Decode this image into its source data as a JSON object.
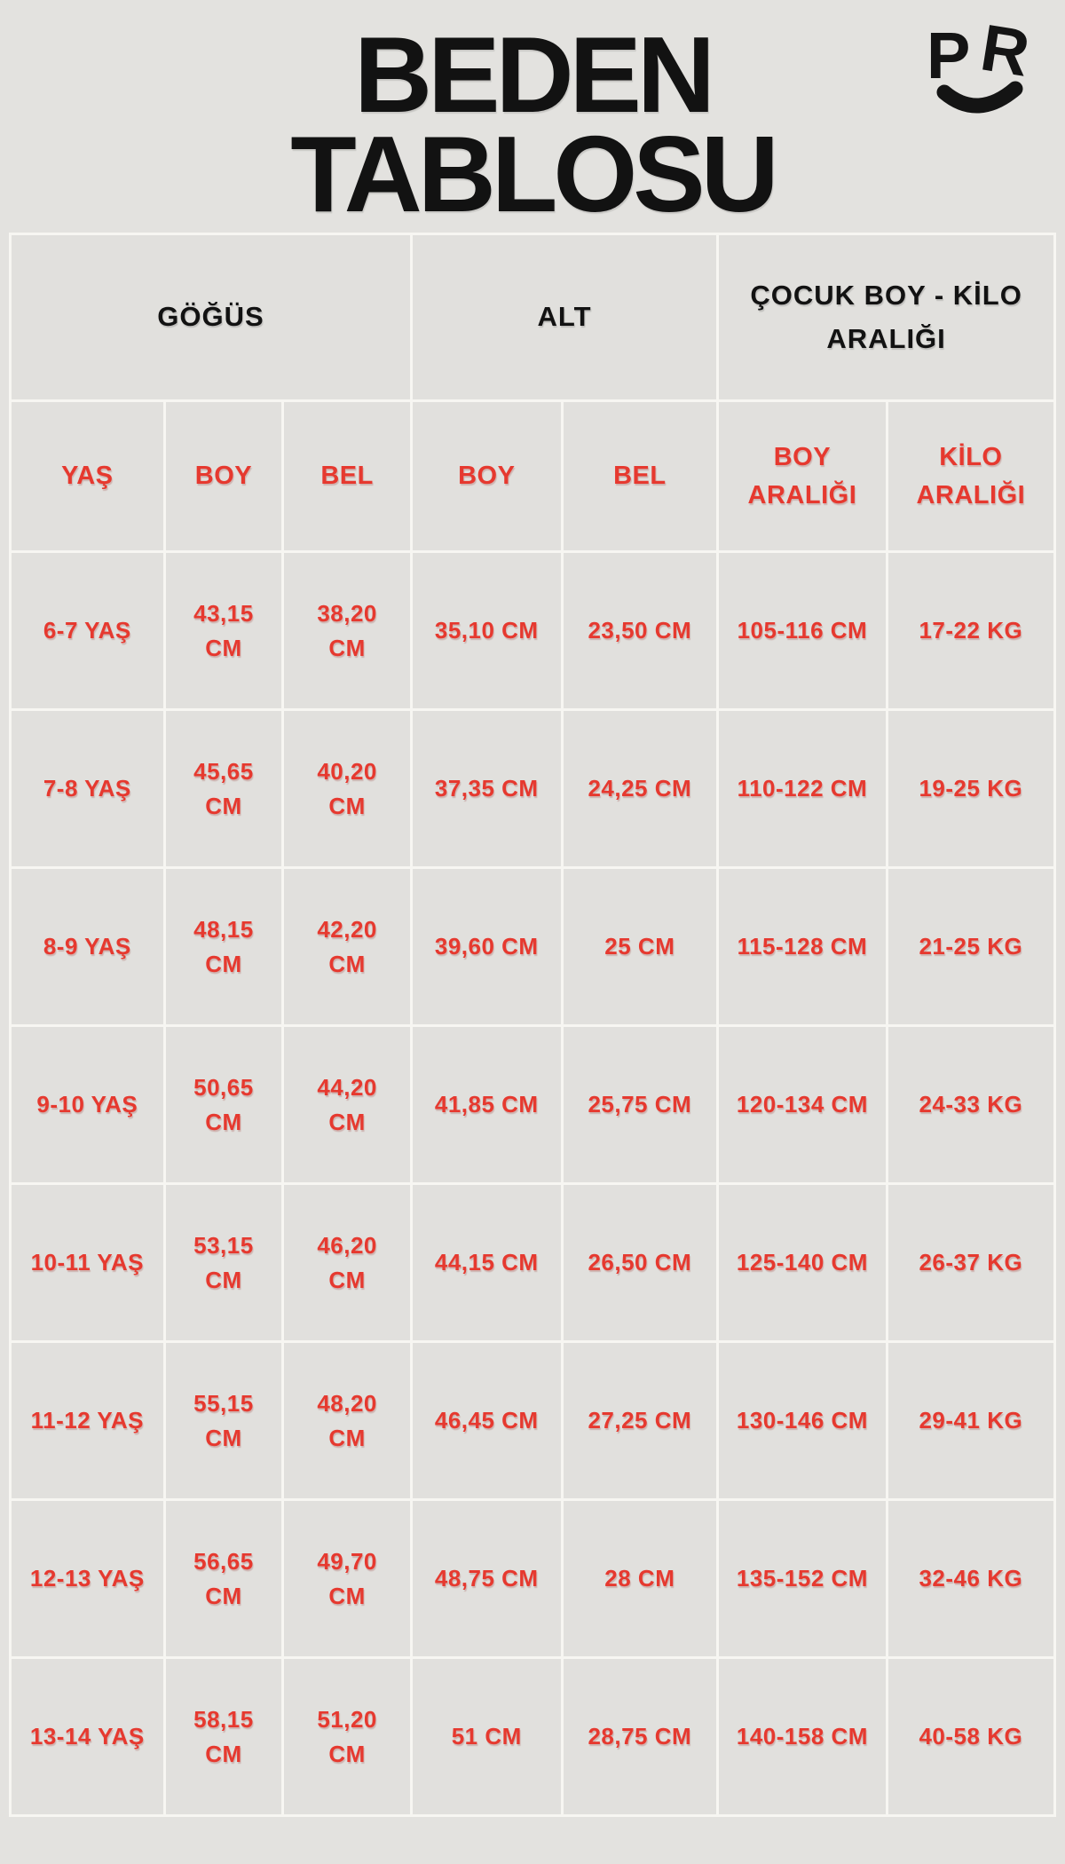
{
  "title": {
    "line1": "BEDEN",
    "line2": "TABLOSU"
  },
  "logo": {
    "letters": "PR",
    "letter1": "P",
    "letter2": "R",
    "mark": "smile-arc"
  },
  "colors": {
    "page_bg": "#e3e2df",
    "cell_bg": "#e1e0dd",
    "border": "#f7f6f2",
    "accent_red": "#e6392f",
    "text_black": "#121212"
  },
  "table": {
    "group_headers": [
      {
        "label": "GÖĞÜS",
        "span": 3
      },
      {
        "label": "ALT",
        "span": 2
      },
      {
        "label": "ÇOCUK BOY - KİLO ARALIĞI",
        "span": 2
      }
    ],
    "column_headers": [
      "YAŞ",
      "BOY",
      "BEL",
      "BOY",
      "BEL",
      "BOY ARALIĞI",
      "KİLO ARALIĞI"
    ],
    "rows": [
      [
        "6-7 YAŞ",
        "43,15 CM",
        "38,20 CM",
        "35,10 CM",
        "23,50 CM",
        "105-116 CM",
        "17-22 KG"
      ],
      [
        "7-8 YAŞ",
        "45,65 CM",
        "40,20 CM",
        "37,35 CM",
        "24,25 CM",
        "110-122 CM",
        "19-25 KG"
      ],
      [
        "8-9 YAŞ",
        "48,15 CM",
        "42,20 CM",
        "39,60 CM",
        "25 CM",
        "115-128 CM",
        "21-25 KG"
      ],
      [
        "9-10 YAŞ",
        "50,65 CM",
        "44,20 CM",
        "41,85 CM",
        "25,75 CM",
        "120-134 CM",
        "24-33 KG"
      ],
      [
        "10-11 YAŞ",
        "53,15 CM",
        "46,20 CM",
        "44,15 CM",
        "26,50 CM",
        "125-140 CM",
        "26-37 KG"
      ],
      [
        "11-12 YAŞ",
        "55,15 CM",
        "48,20 CM",
        "46,45 CM",
        "27,25 CM",
        "130-146 CM",
        "29-41 KG"
      ],
      [
        "12-13 YAŞ",
        "56,65 CM",
        "49,70 CM",
        "48,75 CM",
        "28 CM",
        "135-152 CM",
        "32-46 KG"
      ],
      [
        "13-14 YAŞ",
        "58,15 CM",
        "51,20 CM",
        "51 CM",
        "28,75 CM",
        "140-158 CM",
        "40-58 KG"
      ]
    ]
  },
  "chart_data": {
    "type": "table",
    "title": "BEDEN TABLOSU",
    "column_groups": [
      "GÖĞÜS",
      "ALT",
      "ÇOCUK BOY - KİLO ARALIĞI"
    ],
    "columns": [
      "YAŞ",
      "GÖĞÜS BOY",
      "GÖĞÜS BEL",
      "ALT BOY",
      "ALT BEL",
      "BOY ARALIĞI",
      "KİLO ARALIĞI"
    ],
    "rows": [
      [
        "6-7 YAŞ",
        "43,15 CM",
        "38,20 CM",
        "35,10 CM",
        "23,50 CM",
        "105-116 CM",
        "17-22 KG"
      ],
      [
        "7-8 YAŞ",
        "45,65 CM",
        "40,20 CM",
        "37,35 CM",
        "24,25 CM",
        "110-122 CM",
        "19-25 KG"
      ],
      [
        "8-9 YAŞ",
        "48,15 CM",
        "42,20 CM",
        "39,60 CM",
        "25 CM",
        "115-128 CM",
        "21-25 KG"
      ],
      [
        "9-10 YAŞ",
        "50,65 CM",
        "44,20 CM",
        "41,85 CM",
        "25,75 CM",
        "120-134 CM",
        "24-33 KG"
      ],
      [
        "10-11 YAŞ",
        "53,15 CM",
        "46,20 CM",
        "44,15 CM",
        "26,50 CM",
        "125-140 CM",
        "26-37 KG"
      ],
      [
        "11-12 YAŞ",
        "55,15 CM",
        "48,20 CM",
        "46,45 CM",
        "27,25 CM",
        "130-146 CM",
        "29-41 KG"
      ],
      [
        "12-13 YAŞ",
        "56,65 CM",
        "49,70 CM",
        "48,75 CM",
        "28 CM",
        "135-152 CM",
        "32-46 KG"
      ],
      [
        "13-14 YAŞ",
        "58,15 CM",
        "51,20 CM",
        "51 CM",
        "28,75 CM",
        "140-158 CM",
        "40-58 KG"
      ]
    ]
  }
}
